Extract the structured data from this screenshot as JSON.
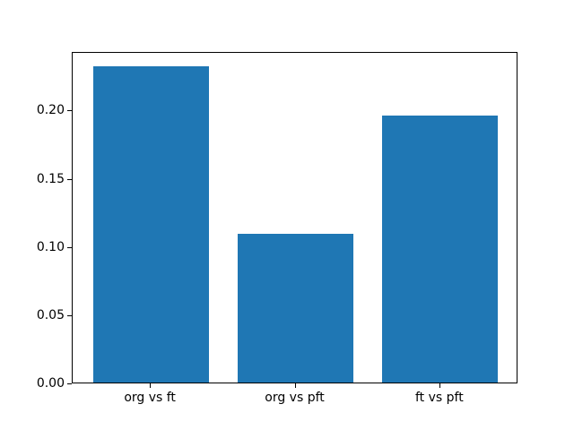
{
  "figure": {
    "background": "#ffffff",
    "plot_background": "#ffffff",
    "spine_color": "#000000",
    "text_color": "#000000"
  },
  "chart_data": {
    "type": "bar",
    "title": "",
    "xlabel": "",
    "ylabel": "",
    "categories": [
      "org vs ft",
      "org vs pft",
      "ft vs pft"
    ],
    "values": [
      0.232,
      0.109,
      0.196
    ],
    "bar_color": "#1f77b4",
    "bar_width_fraction": 0.8,
    "xlim": [
      -0.54,
      2.54
    ],
    "ylim": [
      0,
      0.243
    ],
    "yticks": [
      0.0,
      0.05,
      0.1,
      0.15,
      0.2
    ],
    "ytick_labels": [
      "0.00",
      "0.05",
      "0.10",
      "0.15",
      "0.20"
    ],
    "grid": false,
    "legend": null
  }
}
